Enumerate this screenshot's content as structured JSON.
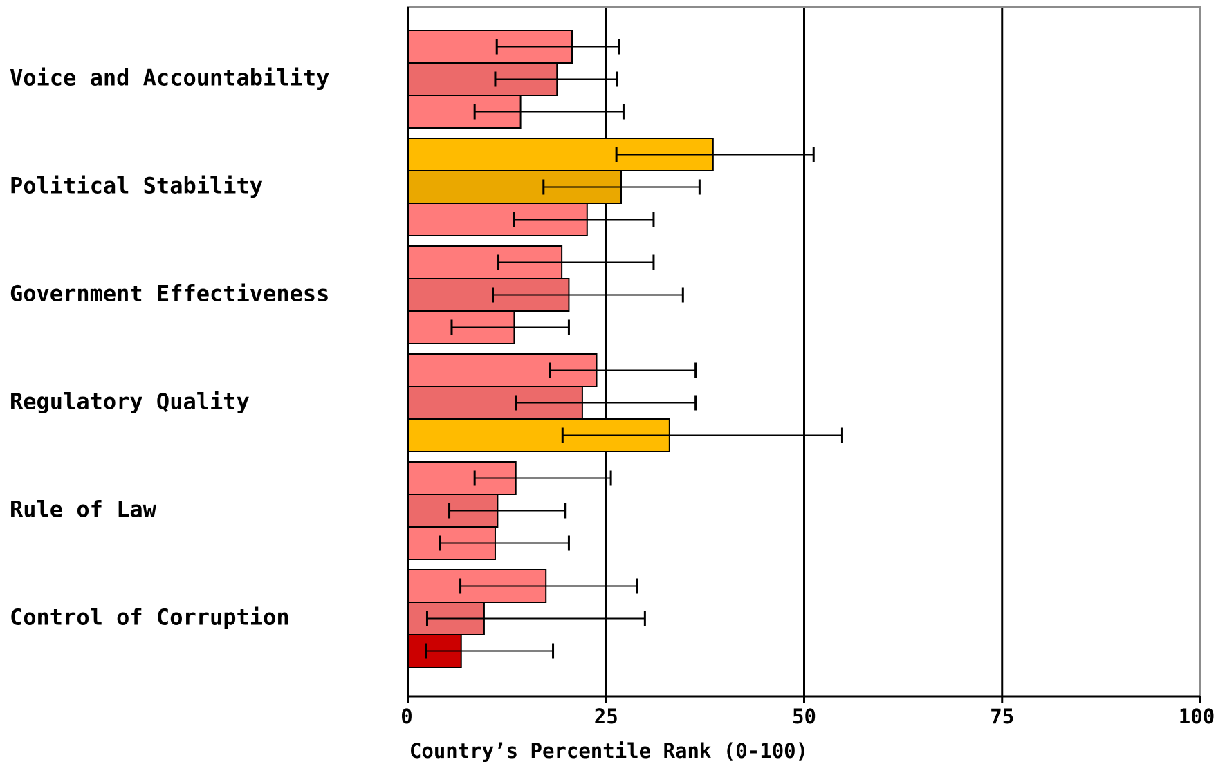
{
  "chart_data": {
    "type": "bar",
    "orientation": "horizontal",
    "xlabel": "Country’s Percentile Rank (0-100)",
    "xlim": [
      0,
      100
    ],
    "xticks": [
      0,
      25,
      50,
      75,
      100
    ],
    "grid": true,
    "categories": [
      "Voice and Accountability",
      "Political Stability",
      "Government Effectiveness",
      "Regulatory Quality",
      "Rule of Law",
      "Control of Corruption"
    ],
    "bars_per_category": 3,
    "values": [
      [
        20.7,
        18.8,
        14.2
      ],
      [
        38.5,
        26.9,
        22.6
      ],
      [
        19.4,
        20.3,
        13.4
      ],
      [
        23.8,
        22.0,
        33.0
      ],
      [
        13.6,
        11.3,
        11.0
      ],
      [
        17.4,
        9.6,
        6.7
      ]
    ],
    "error_bars": [
      [
        [
          11.2,
          26.6
        ],
        [
          11.0,
          26.4
        ],
        [
          8.4,
          27.2
        ]
      ],
      [
        [
          26.3,
          51.2
        ],
        [
          17.1,
          36.8
        ],
        [
          13.4,
          31.0
        ]
      ],
      [
        [
          11.4,
          31.0
        ],
        [
          10.7,
          34.7
        ],
        [
          5.5,
          20.3
        ]
      ],
      [
        [
          17.9,
          36.3
        ],
        [
          13.6,
          36.3
        ],
        [
          19.5,
          54.8
        ]
      ],
      [
        [
          8.4,
          25.6
        ],
        [
          5.2,
          19.8
        ],
        [
          4.0,
          20.3
        ]
      ],
      [
        [
          6.6,
          28.9
        ],
        [
          2.4,
          29.9
        ],
        [
          2.3,
          18.3
        ]
      ]
    ],
    "bar_colors": [
      [
        "#ff7b7b",
        "#ec6a6a",
        "#ff7b7b"
      ],
      [
        "#ffbb00",
        "#eaa800",
        "#ff7b7b"
      ],
      [
        "#ff7b7b",
        "#ec6a6a",
        "#ff7b7b"
      ],
      [
        "#ff7b7b",
        "#ec6a6a",
        "#ffbb00"
      ],
      [
        "#ff7b7b",
        "#ec6a6a",
        "#ff7b7b"
      ],
      [
        "#ff7b7b",
        "#ec6a6a",
        "#cc0000"
      ]
    ]
  }
}
